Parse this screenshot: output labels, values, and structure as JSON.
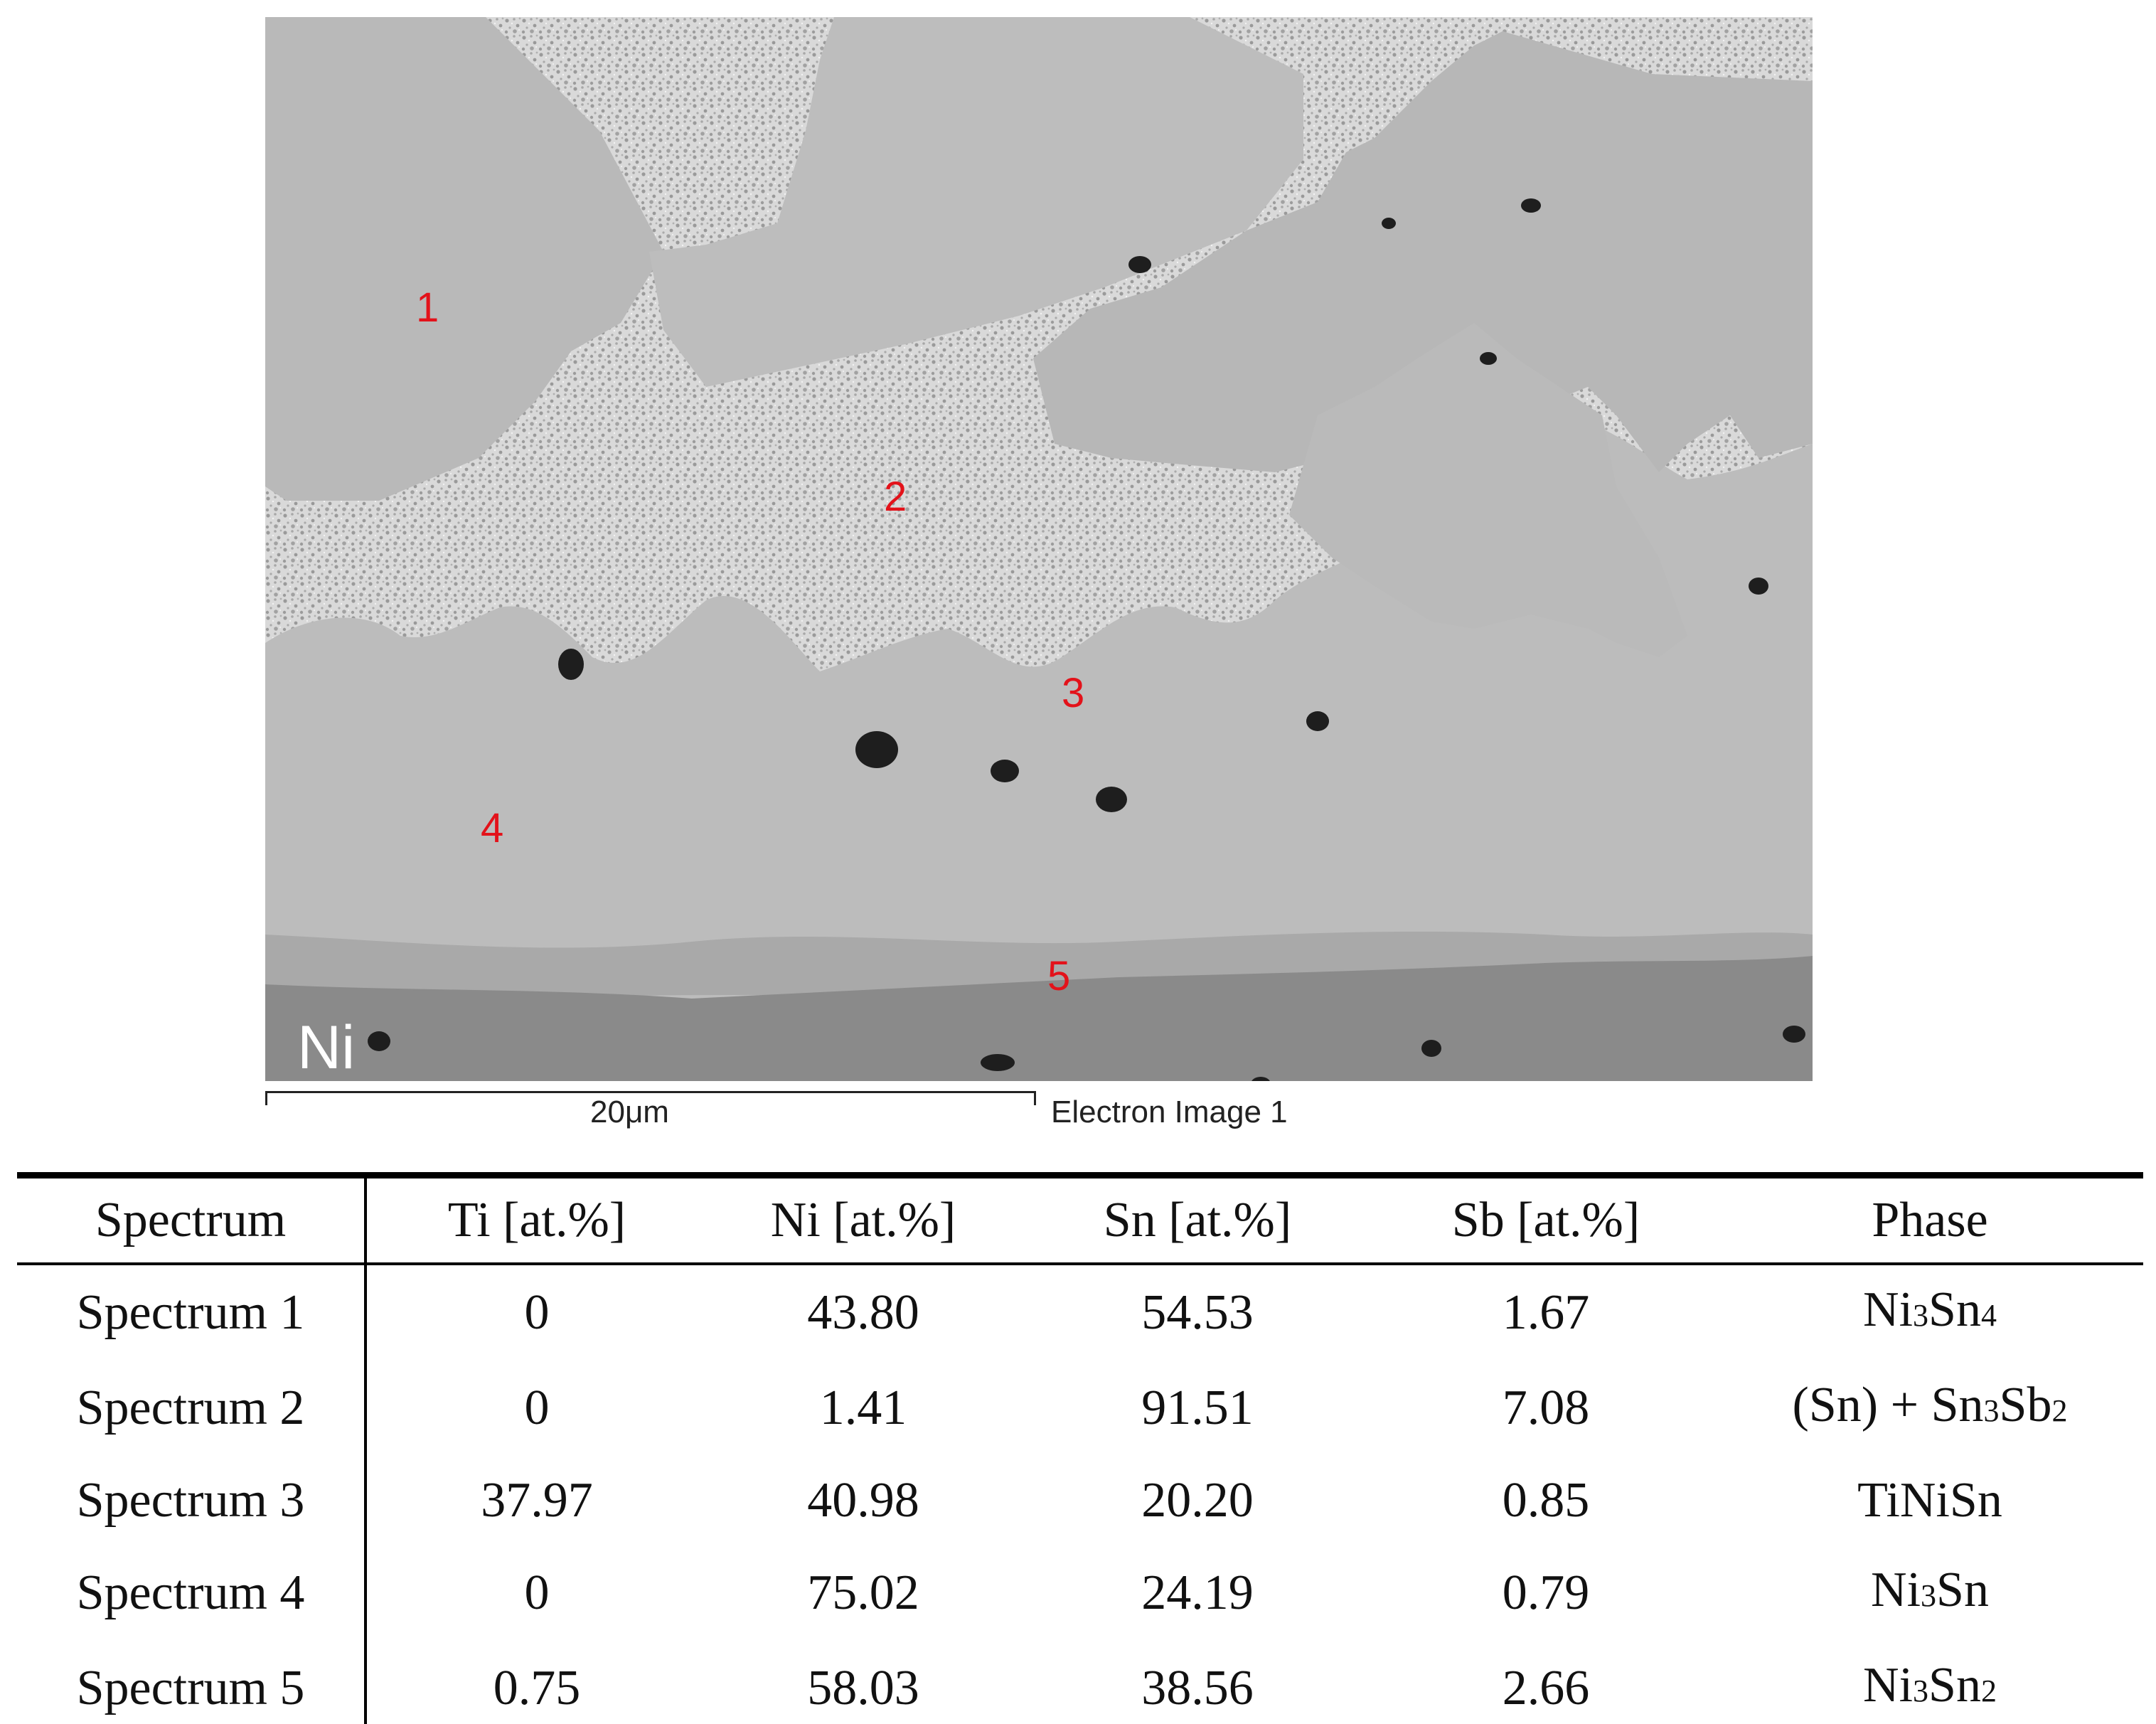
{
  "figure": {
    "spot_labels": [
      "1",
      "2",
      "3",
      "4",
      "5"
    ],
    "substrate_label": "Ni",
    "scale_bar_label": "20μm",
    "image_caption": "Electron Image 1"
  },
  "table": {
    "headers": [
      "Spectrum",
      "Ti [at.%]",
      "Ni [at.%]",
      "Sn [at.%]",
      "Sb [at.%]",
      "Phase"
    ],
    "rows": [
      {
        "spectrum": "Spectrum 1",
        "ti": "0",
        "ni": "43.80",
        "sn": "54.53",
        "sb": "1.67",
        "phase": "Ni3Sn4"
      },
      {
        "spectrum": "Spectrum 2",
        "ti": "0",
        "ni": "1.41",
        "sn": "91.51",
        "sb": "7.08",
        "phase": "(Sn) + Sn3Sb2"
      },
      {
        "spectrum": "Spectrum 3",
        "ti": "37.97",
        "ni": "40.98",
        "sn": "20.20",
        "sb": "0.85",
        "phase": "TiNiSn"
      },
      {
        "spectrum": "Spectrum 4",
        "ti": "0",
        "ni": "75.02",
        "sn": "24.19",
        "sb": "0.79",
        "phase": "Ni3Sn"
      },
      {
        "spectrum": "Spectrum 5",
        "ti": "0.75",
        "ni": "58.03",
        "sn": "38.56",
        "sb": "2.66",
        "phase": "Ni3Sn2"
      }
    ]
  },
  "colors": {
    "spot_label": "#e3121a",
    "intermetallic": "#bababa",
    "eutectic": "#d9d9d9",
    "substrate": "#8a8a8a"
  }
}
